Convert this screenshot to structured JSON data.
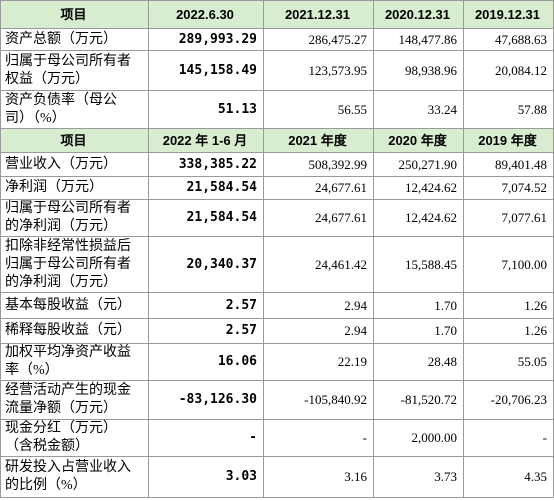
{
  "tables": [
    {
      "header": [
        "项目",
        "2022.6.30",
        "2021.12.31",
        "2020.12.31",
        "2019.12.31"
      ],
      "rows": [
        [
          "资产总额（万元）",
          "289,993.29",
          "286,475.27",
          "148,477.86",
          "47,688.63"
        ],
        [
          "归属于母公司所有者权益（万元）",
          "145,158.49",
          "123,573.95",
          "98,938.96",
          "20,084.12"
        ],
        [
          "资产负债率（母公司）（%）",
          "51.13",
          "56.55",
          "33.24",
          "57.88"
        ]
      ]
    },
    {
      "header": [
        "项目",
        "2022 年 1-6 月",
        "2021 年度",
        "2020 年度",
        "2019 年度"
      ],
      "rows": [
        [
          "营业收入（万元）",
          "338,385.22",
          "508,392.99",
          "250,271.90",
          "89,401.48"
        ],
        [
          "净利润（万元）",
          "21,584.54",
          "24,677.61",
          "12,424.62",
          "7,074.52"
        ],
        [
          "归属于母公司所有者的净利润（万元）",
          "21,584.54",
          "24,677.61",
          "12,424.62",
          "7,077.61"
        ],
        [
          "扣除非经常性损益后归属于母公司所有者的净利润（万元）",
          "20,340.37",
          "24,461.42",
          "15,588.45",
          "7,100.00"
        ],
        [
          "基本每股收益（元）",
          "2.57",
          "2.94",
          "1.70",
          "1.26"
        ],
        [
          "稀释每股收益（元）",
          "2.57",
          "2.94",
          "1.70",
          "1.26"
        ],
        [
          "加权平均净资产收益率（%）",
          "16.06",
          "22.19",
          "28.48",
          "55.05"
        ],
        [
          "经营活动产生的现金流量净额（万元）",
          "-83,126.30",
          "-105,840.92",
          "-81,520.72",
          "-20,706.23"
        ],
        [
          "现金分红（万元）（含税金额）",
          "-",
          "-",
          "2,000.00",
          "-"
        ],
        [
          "研发投入占营业收入的比例（%）",
          "3.03",
          "3.16",
          "3.73",
          "4.35"
        ]
      ]
    }
  ]
}
